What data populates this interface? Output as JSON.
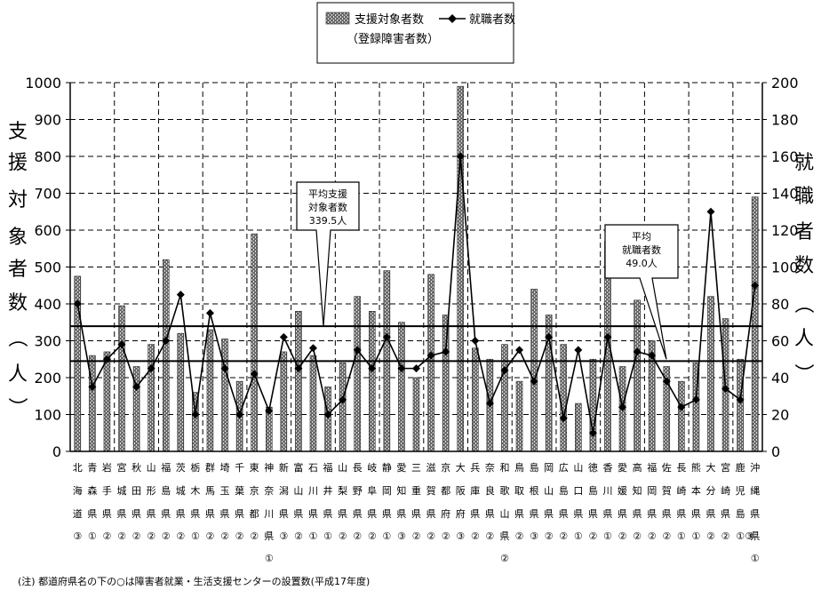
{
  "chart_data": {
    "type": "bar",
    "ylim": [
      0,
      1000
    ],
    "y2lim": [
      0,
      200
    ],
    "yticks": [
      "0",
      "100",
      "200",
      "300",
      "400",
      "500",
      "600",
      "700",
      "800",
      "900",
      "1000"
    ],
    "y2ticks": [
      "0",
      "20",
      "40",
      "60",
      "80",
      "100",
      "120",
      "140",
      "160",
      "180",
      "200"
    ],
    "ylabel": "支援対象者数（人）",
    "y2label": "就職者数（人）",
    "grid": true,
    "legend_position": "top-center",
    "legend": {
      "bar_line1": "支援対象者数",
      "bar_line2": "（登録障害者数）",
      "line": "就職者数"
    },
    "categories": [
      "北海道",
      "青森県",
      "岩手県",
      "宮城県",
      "秋田県",
      "山形県",
      "福島県",
      "茨城県",
      "栃木県",
      "群馬県",
      "埼玉県",
      "千葉県",
      "東京都",
      "神奈川県",
      "新潟県",
      "富山県",
      "石川県",
      "福井県",
      "山梨県",
      "長野県",
      "岐阜県",
      "静岡県",
      "愛知県",
      "三重県",
      "滋賀県",
      "京都府",
      "大阪府",
      "兵庫県",
      "奈良県",
      "和歌山県",
      "鳥取県",
      "島根県",
      "岡山県",
      "広島県",
      "山口県",
      "徳島県",
      "香川県",
      "愛媛県",
      "高知県",
      "福岡県",
      "佐賀県",
      "長崎県",
      "熊本県",
      "大分県",
      "宮崎県",
      "鹿児島県",
      "沖縄県"
    ],
    "category_rows": [
      [
        "北",
        "青",
        "岩",
        "宮",
        "秋",
        "山",
        "福",
        "茨",
        "栃",
        "群",
        "埼",
        "千",
        "東",
        "神",
        "新",
        "富",
        "石",
        "福",
        "山",
        "長",
        "岐",
        "静",
        "愛",
        "三",
        "滋",
        "京",
        "大",
        "兵",
        "奈",
        "和",
        "鳥",
        "島",
        "岡",
        "広",
        "山",
        "徳",
        "香",
        "愛",
        "高",
        "福",
        "佐",
        "長",
        "熊",
        "大",
        "宮",
        "鹿",
        "沖"
      ],
      [
        "海",
        "森",
        "手",
        "城",
        "田",
        "形",
        "島",
        "城",
        "木",
        "馬",
        "玉",
        "葉",
        "京",
        "奈",
        "潟",
        "山",
        "川",
        "井",
        "梨",
        "野",
        "阜",
        "岡",
        "知",
        "重",
        "賀",
        "都",
        "阪",
        "庫",
        "良",
        "歌",
        "取",
        "根",
        "山",
        "島",
        "口",
        "島",
        "川",
        "媛",
        "知",
        "岡",
        "賀",
        "崎",
        "本",
        "分",
        "崎",
        "児",
        "縄"
      ],
      [
        "道",
        "県",
        "県",
        "県",
        "県",
        "県",
        "県",
        "県",
        "県",
        "県",
        "県",
        "県",
        "都",
        "川",
        "県",
        "県",
        "県",
        "県",
        "県",
        "県",
        "県",
        "県",
        "県",
        "県",
        "県",
        "府",
        "府",
        "県",
        "県",
        "山",
        "県",
        "県",
        "県",
        "県",
        "県",
        "県",
        "県",
        "県",
        "県",
        "県",
        "県",
        "県",
        "県",
        "県",
        "県",
        "島",
        "県"
      ],
      [
        "③",
        "①",
        "②",
        "②",
        "②",
        "②",
        "②",
        "②",
        "①",
        "②",
        "②",
        "②",
        "②",
        "県",
        "③",
        "②",
        "①",
        "①",
        "②",
        "②",
        "②",
        "①",
        "③",
        "②",
        "②",
        "②",
        "③",
        "②",
        "②",
        "県",
        "②",
        "③",
        "②",
        "②",
        "①",
        "②",
        "①",
        "②",
        "②",
        "②",
        "②",
        "①",
        "①",
        "②",
        "②",
        "①",
        "県"
      ],
      [
        "",
        "",
        "",
        "",
        "",
        "",
        "",
        "",
        "",
        "",
        "",
        "",
        "",
        "",
        "",
        "",
        "",
        "",
        "",
        "",
        "",
        "",
        "",
        "",
        "",
        "",
        "",
        "",
        "",
        "",
        "",
        "",
        "",
        "",
        "",
        "",
        "",
        "",
        "",
        "",
        "",
        "",
        "",
        "",
        "",
        "",
        ""
      ]
    ],
    "category_row5": {
      "神奈川県": "①",
      "和歌山県": "②",
      "沖縄県": "①"
    },
    "category_row4_tail": {
      "鹿児島県": "③"
    },
    "series": [
      {
        "name": "支援対象者数",
        "type": "bar",
        "axis": "left",
        "values": [
          475,
          260,
          270,
          395,
          230,
          290,
          520,
          320,
          160,
          330,
          305,
          190,
          590,
          120,
          270,
          380,
          260,
          175,
          240,
          420,
          380,
          490,
          350,
          200,
          480,
          370,
          990,
          280,
          250,
          290,
          190,
          440,
          370,
          290,
          130,
          250,
          570,
          230,
          410,
          300,
          230,
          190,
          240,
          420,
          360,
          250,
          690
        ]
      },
      {
        "name": "就職者数",
        "type": "line",
        "axis": "right",
        "values": [
          80,
          35,
          50,
          58,
          35,
          45,
          60,
          85,
          20,
          75,
          45,
          20,
          42,
          22,
          62,
          45,
          56,
          20,
          28,
          55,
          45,
          62,
          45,
          45,
          52,
          54,
          160,
          60,
          26,
          44,
          55,
          38,
          62,
          18,
          55,
          10,
          62,
          24,
          54,
          52,
          38,
          24,
          28,
          130,
          34,
          28,
          90
        ]
      }
    ],
    "annotations": [
      {
        "line1": "平均支援",
        "line2": "対象者数",
        "line3": "339.5人",
        "axis": "left",
        "value": 339.5
      },
      {
        "line1": "平均",
        "line2": "就職者数",
        "line3": "49.0人",
        "axis": "right",
        "value": 49.0
      }
    ]
  },
  "footnote": "(注) 都道府県名の下の○は障害者就業・生活支援センターの設置数(平成17年度)"
}
